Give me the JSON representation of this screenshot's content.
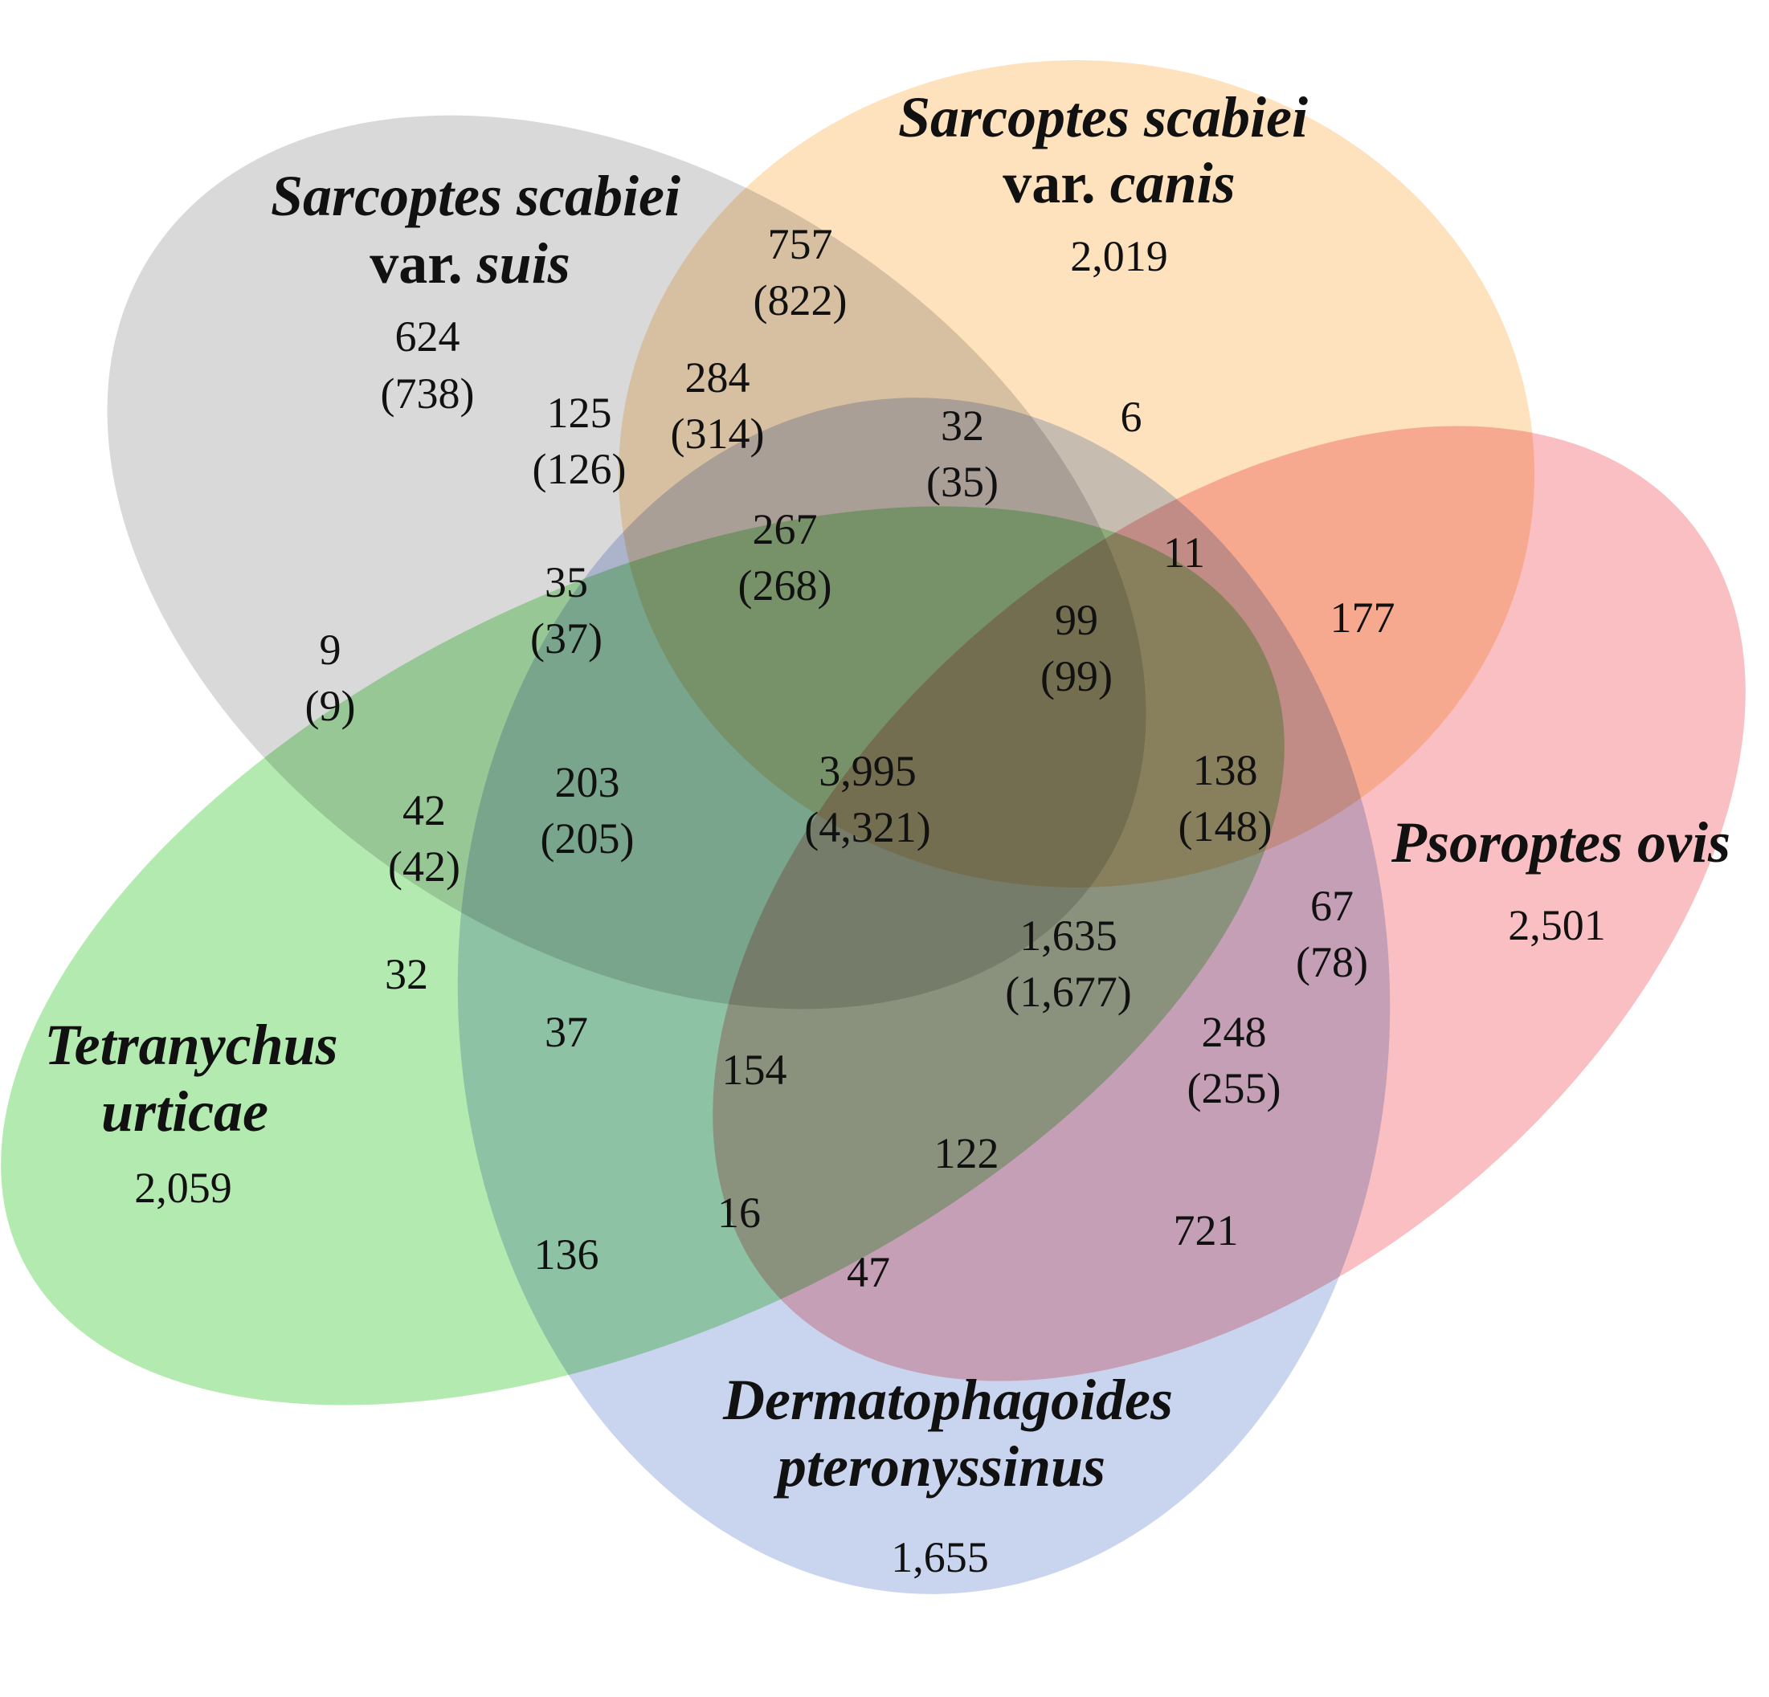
{
  "sets": [
    {
      "id": "suis",
      "line1": "Sarcoptes scabiei",
      "line2_plain": "var. ",
      "line2_italic": "suis",
      "total": "624",
      "total_paren": "(738)",
      "color": "#d9d9d9"
    },
    {
      "id": "canis",
      "line1": "Sarcoptes scabiei",
      "line2_plain": "var. ",
      "line2_italic": "canis",
      "total": "2,019",
      "color": "#fde2bd"
    },
    {
      "id": "psoroptes",
      "line1": "Psoroptes ovis",
      "total": "2,501",
      "color": "#f9bfc2"
    },
    {
      "id": "dermato",
      "line1": "Dermatophagoides",
      "line2_italic": "pteronyssinus",
      "total": "1,655",
      "color": "#c9d4ee"
    },
    {
      "id": "tetranychus",
      "line1": "Tetranychus",
      "line2_italic": "urticae",
      "total": "2,059",
      "color": "#b3eab0"
    }
  ],
  "regions": {
    "r757": [
      "757",
      "(822)"
    ],
    "r125": [
      "125",
      "(126)"
    ],
    "r284": [
      "284",
      "(314)"
    ],
    "r32a": [
      "32",
      "(35)"
    ],
    "r6": [
      "6"
    ],
    "r267": [
      "267",
      "(268)"
    ],
    "r35": [
      "35",
      "(37)"
    ],
    "r11": [
      "11"
    ],
    "r177": [
      "177"
    ],
    "r9": [
      "9",
      "(9)"
    ],
    "r99": [
      "99",
      "(99)"
    ],
    "r42": [
      "42",
      "(42)"
    ],
    "r203": [
      "203",
      "(205)"
    ],
    "r3995": [
      "3,995",
      "(4,321)"
    ],
    "r138": [
      "138",
      "(148)"
    ],
    "r67": [
      "67",
      "(78)"
    ],
    "r1635": [
      "1,635",
      "(1,677)"
    ],
    "r32b": [
      "32"
    ],
    "r37": [
      "37"
    ],
    "r154": [
      "154"
    ],
    "r248": [
      "248",
      "(255)"
    ],
    "r122": [
      "122"
    ],
    "r16": [
      "16"
    ],
    "r136": [
      "136"
    ],
    "r47": [
      "47"
    ],
    "r721": [
      "721"
    ]
  }
}
